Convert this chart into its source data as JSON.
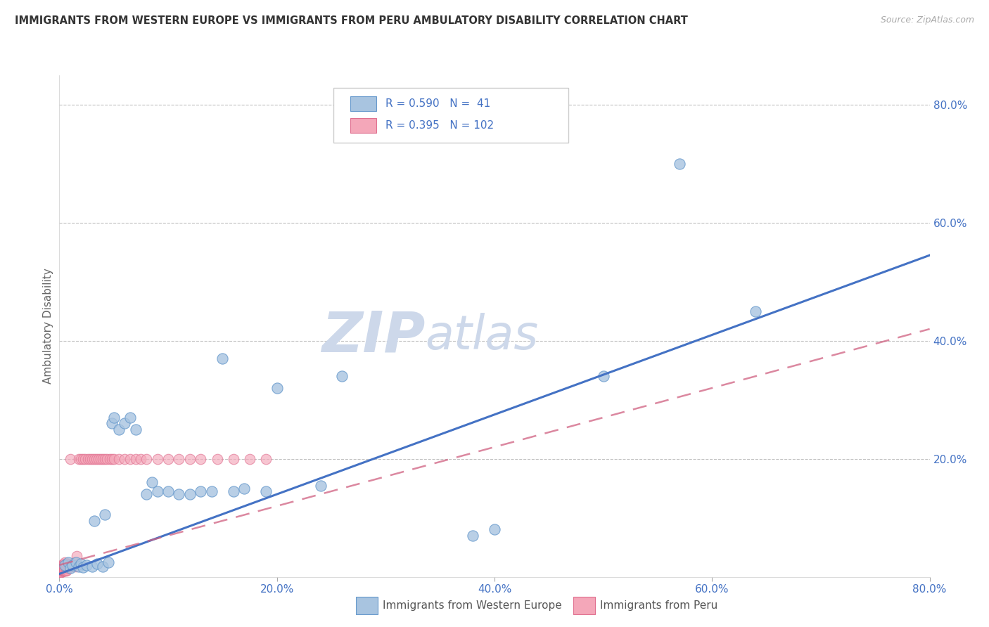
{
  "title": "IMMIGRANTS FROM WESTERN EUROPE VS IMMIGRANTS FROM PERU AMBULATORY DISABILITY CORRELATION CHART",
  "source": "Source: ZipAtlas.com",
  "ylabel": "Ambulatory Disability",
  "legend_label_blue": "Immigrants from Western Europe",
  "legend_label_pink": "Immigrants from Peru",
  "R_blue": 0.59,
  "N_blue": 41,
  "R_pink": 0.395,
  "N_pink": 102,
  "xlim": [
    0,
    0.8
  ],
  "ylim": [
    0,
    0.85
  ],
  "xticks": [
    0.0,
    0.2,
    0.4,
    0.6,
    0.8
  ],
  "yticks_right": [
    0.2,
    0.4,
    0.6,
    0.8
  ],
  "color_blue_fill": "#a8c4e0",
  "color_blue_edge": "#6699cc",
  "color_blue_line": "#4472c4",
  "color_pink_fill": "#f4a7b9",
  "color_pink_edge": "#e07090",
  "color_pink_line": "#d06080",
  "background": "#ffffff",
  "grid_color": "#bbbbbb",
  "watermark_color": "#cdd8ea",
  "legend_text_color": "#4472c4",
  "tick_color": "#4472c4",
  "blue_x": [
    0.005,
    0.008,
    0.01,
    0.012,
    0.015,
    0.018,
    0.02,
    0.022,
    0.025,
    0.03,
    0.032,
    0.035,
    0.04,
    0.042,
    0.045,
    0.048,
    0.05,
    0.055,
    0.06,
    0.065,
    0.07,
    0.08,
    0.085,
    0.09,
    0.1,
    0.11,
    0.12,
    0.13,
    0.14,
    0.15,
    0.16,
    0.17,
    0.19,
    0.2,
    0.24,
    0.26,
    0.38,
    0.4,
    0.5,
    0.57,
    0.64
  ],
  "blue_y": [
    0.02,
    0.025,
    0.015,
    0.02,
    0.025,
    0.018,
    0.022,
    0.016,
    0.02,
    0.018,
    0.095,
    0.022,
    0.018,
    0.105,
    0.025,
    0.26,
    0.27,
    0.25,
    0.26,
    0.27,
    0.25,
    0.14,
    0.16,
    0.145,
    0.145,
    0.14,
    0.14,
    0.145,
    0.145,
    0.37,
    0.145,
    0.15,
    0.145,
    0.32,
    0.155,
    0.34,
    0.07,
    0.08,
    0.34,
    0.7,
    0.45
  ],
  "pink_x": [
    0.001,
    0.001,
    0.001,
    0.001,
    0.001,
    0.001,
    0.001,
    0.001,
    0.001,
    0.001,
    0.002,
    0.002,
    0.002,
    0.002,
    0.002,
    0.002,
    0.002,
    0.002,
    0.002,
    0.002,
    0.003,
    0.003,
    0.003,
    0.003,
    0.003,
    0.003,
    0.003,
    0.003,
    0.003,
    0.003,
    0.004,
    0.004,
    0.004,
    0.004,
    0.004,
    0.004,
    0.004,
    0.004,
    0.004,
    0.004,
    0.005,
    0.005,
    0.005,
    0.005,
    0.005,
    0.005,
    0.005,
    0.005,
    0.005,
    0.005,
    0.006,
    0.006,
    0.006,
    0.006,
    0.007,
    0.007,
    0.007,
    0.008,
    0.008,
    0.008,
    0.009,
    0.009,
    0.01,
    0.01,
    0.011,
    0.012,
    0.013,
    0.014,
    0.015,
    0.016,
    0.018,
    0.02,
    0.022,
    0.024,
    0.026,
    0.028,
    0.03,
    0.032,
    0.034,
    0.036,
    0.038,
    0.04,
    0.042,
    0.044,
    0.046,
    0.048,
    0.05,
    0.055,
    0.06,
    0.065,
    0.07,
    0.075,
    0.08,
    0.09,
    0.1,
    0.11,
    0.12,
    0.13,
    0.145,
    0.16,
    0.175,
    0.19
  ],
  "pink_y": [
    0.008,
    0.01,
    0.012,
    0.01,
    0.008,
    0.012,
    0.015,
    0.01,
    0.008,
    0.012,
    0.01,
    0.008,
    0.012,
    0.015,
    0.01,
    0.018,
    0.02,
    0.015,
    0.012,
    0.01,
    0.01,
    0.012,
    0.015,
    0.018,
    0.01,
    0.012,
    0.02,
    0.015,
    0.012,
    0.01,
    0.01,
    0.012,
    0.015,
    0.018,
    0.022,
    0.012,
    0.01,
    0.015,
    0.018,
    0.012,
    0.01,
    0.012,
    0.015,
    0.018,
    0.022,
    0.012,
    0.025,
    0.015,
    0.01,
    0.012,
    0.01,
    0.015,
    0.018,
    0.022,
    0.012,
    0.018,
    0.022,
    0.015,
    0.018,
    0.022,
    0.018,
    0.022,
    0.018,
    0.2,
    0.022,
    0.018,
    0.022,
    0.025,
    0.018,
    0.035,
    0.2,
    0.2,
    0.2,
    0.2,
    0.2,
    0.2,
    0.2,
    0.2,
    0.2,
    0.2,
    0.2,
    0.2,
    0.2,
    0.2,
    0.2,
    0.2,
    0.2,
    0.2,
    0.2,
    0.2,
    0.2,
    0.2,
    0.2,
    0.2,
    0.2,
    0.2,
    0.2,
    0.2,
    0.2,
    0.2,
    0.2,
    0.2
  ],
  "blue_line_x": [
    0.0,
    0.8
  ],
  "blue_line_y": [
    0.005,
    0.545
  ],
  "pink_line_x": [
    0.0,
    0.8
  ],
  "pink_line_y": [
    0.02,
    0.42
  ]
}
